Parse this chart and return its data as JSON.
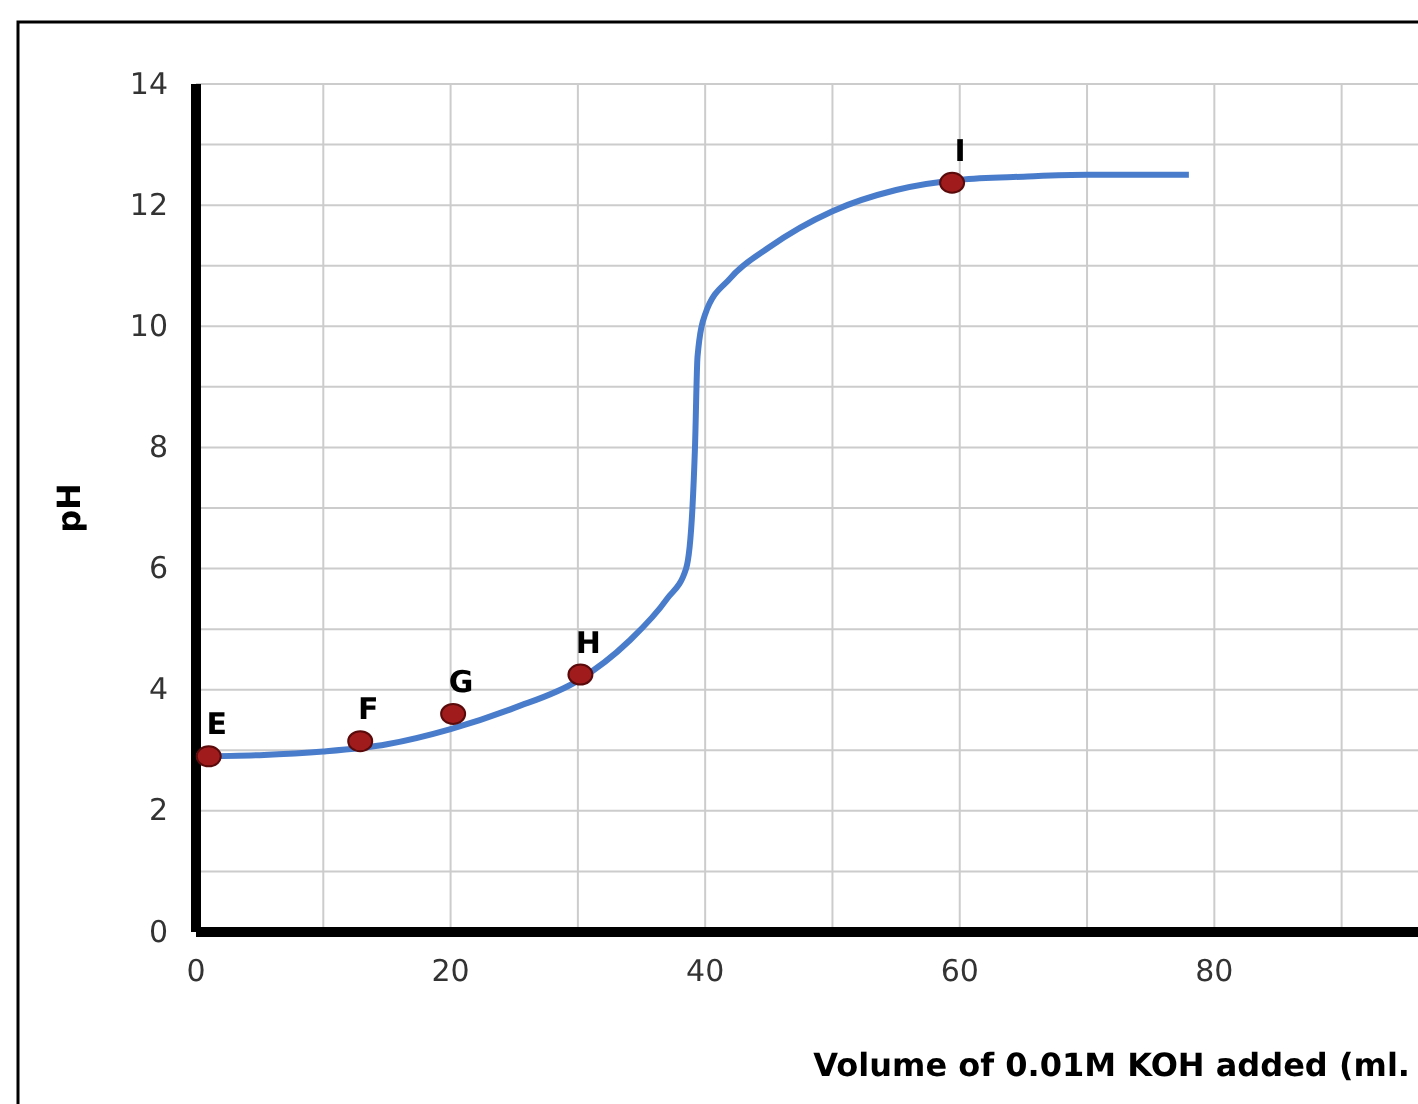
{
  "chart_data": {
    "type": "line",
    "xlabel": "Volume of 0.01M KOH added (ml.",
    "ylabel": "pH",
    "xlim": [
      0,
      96
    ],
    "ylim": [
      0,
      14
    ],
    "xticks": [
      0,
      {
        "value": 10,
        "label": null
      },
      20,
      {
        "value": 30,
        "label": null
      },
      40,
      {
        "value": 50,
        "label": null
      },
      60,
      {
        "value": 70,
        "label": null
      },
      80,
      {
        "value": 90,
        "label": null
      }
    ],
    "yticks": [
      0,
      {
        "value": 1,
        "label": null
      },
      2,
      {
        "value": 3,
        "label": null
      },
      4,
      {
        "value": 5,
        "label": null
      },
      6,
      {
        "value": 7,
        "label": null
      },
      8,
      {
        "value": 9,
        "label": null
      },
      10,
      {
        "value": 11,
        "label": null
      },
      12,
      {
        "value": 13,
        "label": null
      },
      14
    ],
    "grid": true,
    "series": [
      {
        "color": "#4a7ccc",
        "x": [
          0,
          5,
          10,
          15,
          20,
          25,
          30,
          34,
          37,
          38.5,
          39,
          39.2,
          39.4,
          40,
          42,
          45,
          50,
          55,
          60,
          65,
          70,
          78
        ],
        "values": [
          2.9,
          2.92,
          2.98,
          3.1,
          3.35,
          3.7,
          4.15,
          4.8,
          5.5,
          6.0,
          7,
          8,
          9.5,
          10.2,
          10.8,
          11.3,
          11.9,
          12.25,
          12.42,
          12.47,
          12.5,
          12.5
        ]
      },
      {
        "type": "scatter",
        "color": "#a01c1c",
        "marker": "circle",
        "x": [
          1,
          12.9,
          20.2,
          30.2,
          59.4
        ],
        "values": [
          2.9,
          3.15,
          3.6,
          4.25,
          12.37
        ]
      }
    ],
    "annotations": [
      {
        "text": "E",
        "x": 1,
        "y": 2.9
      },
      {
        "text": "F",
        "x": 12.9,
        "y": 3.15
      },
      {
        "text": "G",
        "x": 20.2,
        "y": 3.6
      },
      {
        "text": "H",
        "x": 30.2,
        "y": 4.25
      },
      {
        "text": "I",
        "x": 59.4,
        "y": 12.37
      }
    ]
  }
}
